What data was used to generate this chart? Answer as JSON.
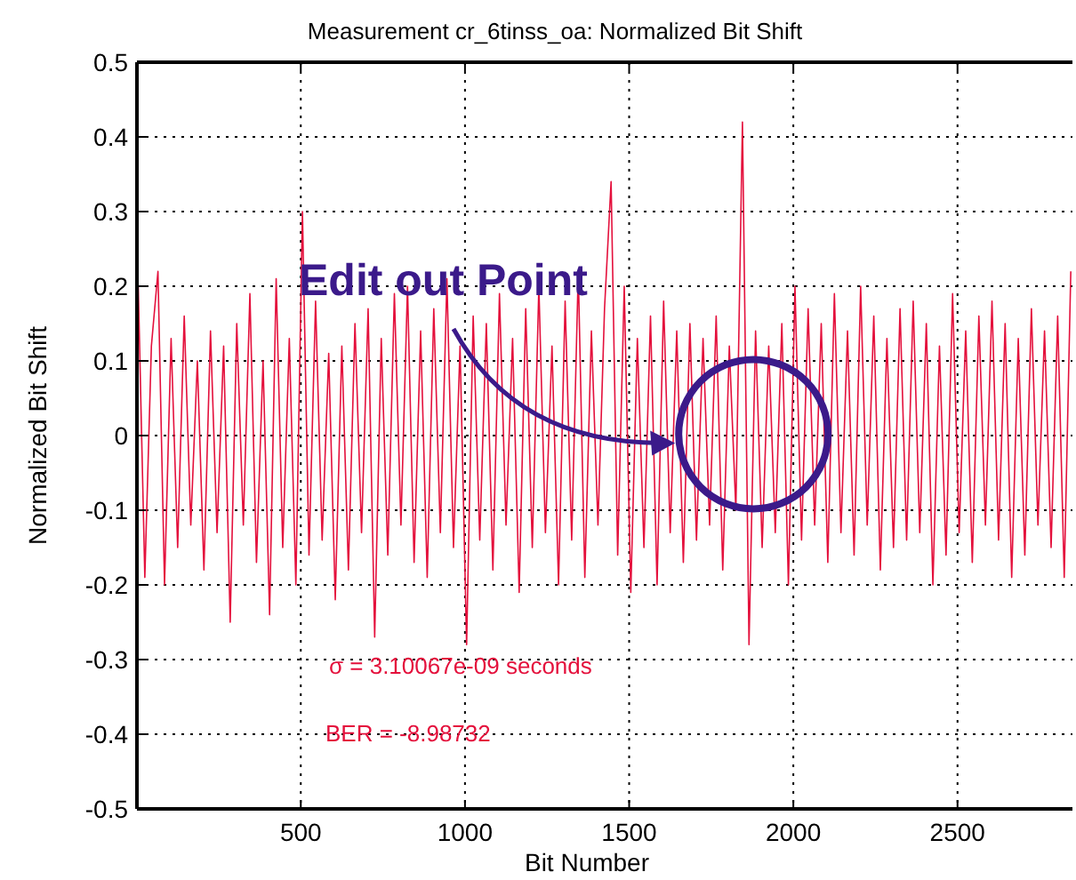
{
  "chart_data": {
    "type": "line",
    "title": "Measurement cr_6tinss_oa: Normalized Bit Shift",
    "xlabel": "Bit Number",
    "ylabel": "Normalized Bit Shift",
    "x": [
      5,
      25,
      45,
      65,
      85,
      105,
      125,
      145,
      165,
      185,
      205,
      225,
      245,
      265,
      285,
      305,
      325,
      345,
      365,
      385,
      405,
      425,
      445,
      465,
      485,
      505,
      525,
      545,
      565,
      585,
      605,
      625,
      645,
      665,
      685,
      705,
      725,
      745,
      765,
      785,
      805,
      825,
      845,
      865,
      885,
      905,
      925,
      945,
      965,
      985,
      1005,
      1025,
      1045,
      1065,
      1085,
      1105,
      1125,
      1145,
      1165,
      1185,
      1205,
      1225,
      1245,
      1265,
      1285,
      1305,
      1325,
      1345,
      1365,
      1385,
      1405,
      1425,
      1445,
      1465,
      1485,
      1505,
      1525,
      1545,
      1565,
      1585,
      1605,
      1625,
      1645,
      1665,
      1685,
      1705,
      1725,
      1745,
      1765,
      1785,
      1805,
      1825,
      1845,
      1865,
      1885,
      1905,
      1925,
      1945,
      1965,
      1985,
      2005,
      2025,
      2045,
      2065,
      2085,
      2105,
      2125,
      2145,
      2165,
      2185,
      2205,
      2225,
      2245,
      2265,
      2285,
      2305,
      2325,
      2345,
      2365,
      2385,
      2405,
      2425,
      2445,
      2465,
      2485,
      2505,
      2525,
      2545,
      2565,
      2585,
      2605,
      2625,
      2645,
      2665,
      2685,
      2705,
      2725,
      2745,
      2765,
      2785,
      2805,
      2825,
      2845
    ],
    "series": [
      {
        "color": "#e4103c",
        "values": [
          0.2,
          -0.19,
          0.12,
          0.22,
          -0.2,
          0.13,
          -0.15,
          0.16,
          -0.12,
          0.1,
          -0.18,
          0.14,
          -0.13,
          0.12,
          -0.25,
          0.15,
          -0.12,
          0.19,
          -0.17,
          0.1,
          -0.24,
          0.21,
          -0.15,
          0.13,
          -0.2,
          0.3,
          -0.16,
          0.18,
          -0.14,
          0.11,
          -0.22,
          0.12,
          -0.18,
          0.15,
          -0.13,
          0.17,
          -0.27,
          0.13,
          -0.16,
          0.19,
          -0.12,
          0.2,
          -0.17,
          0.14,
          -0.19,
          0.17,
          -0.13,
          0.21,
          -0.15,
          0.12,
          -0.28,
          0.16,
          -0.14,
          0.15,
          -0.18,
          0.19,
          -0.12,
          0.13,
          -0.21,
          0.17,
          -0.15,
          0.2,
          -0.13,
          0.12,
          -0.2,
          0.18,
          -0.14,
          0.22,
          -0.19,
          0.14,
          -0.12,
          0.17,
          0.34,
          -0.16,
          0.2,
          -0.21,
          0.13,
          -0.15,
          0.16,
          -0.2,
          0.18,
          -0.13,
          0.14,
          -0.17,
          0.15,
          -0.14,
          0.13,
          -0.12,
          0.16,
          -0.18,
          0.12,
          -0.1,
          0.42,
          -0.28,
          0.14,
          -0.15,
          0.12,
          -0.13,
          0.15,
          -0.2,
          0.2,
          -0.14,
          0.17,
          -0.12,
          0.15,
          -0.17,
          0.19,
          -0.13,
          0.14,
          -0.16,
          0.2,
          -0.12,
          0.16,
          -0.18,
          0.13,
          -0.15,
          0.17,
          -0.14,
          0.18,
          -0.13,
          0.15,
          -0.2,
          0.12,
          -0.16,
          0.19,
          -0.13,
          0.14,
          -0.17,
          0.16,
          -0.12,
          0.18,
          -0.14,
          0.15,
          -0.19,
          0.13,
          -0.16,
          0.17,
          -0.12,
          0.14,
          -0.15,
          0.16,
          -0.19,
          0.22
        ]
      }
    ],
    "xlim": [
      1,
      2850
    ],
    "xticks": [
      500,
      1000,
      1500,
      2000,
      2500
    ],
    "ylim": [
      -0.5,
      0.5
    ],
    "yticks": [
      -0.5,
      -0.4,
      -0.3,
      -0.2,
      -0.1,
      0,
      0.1,
      0.2,
      0.3,
      0.4,
      0.5
    ],
    "grid": true,
    "marker": "none",
    "line_style": "solid",
    "annotations": [
      {
        "text": "Edit out Point",
        "x": 1640,
        "y": -0.01
      },
      "σ = 3.10067e-09 seconds",
      "BER = -8.98732"
    ]
  }
}
